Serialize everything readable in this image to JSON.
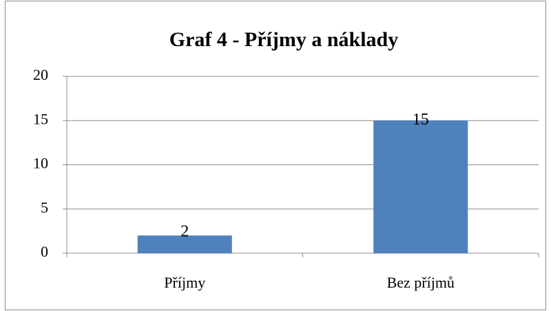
{
  "chart_data": {
    "type": "bar",
    "title": "Graf 4 - Příjmy a náklady",
    "categories": [
      "Příjmy",
      "Bez příjmů"
    ],
    "values": [
      2,
      15
    ],
    "color": "#4f81bd",
    "ylim": [
      0,
      20
    ],
    "yticks": [
      0,
      5,
      10,
      15,
      20
    ],
    "grid": true
  }
}
